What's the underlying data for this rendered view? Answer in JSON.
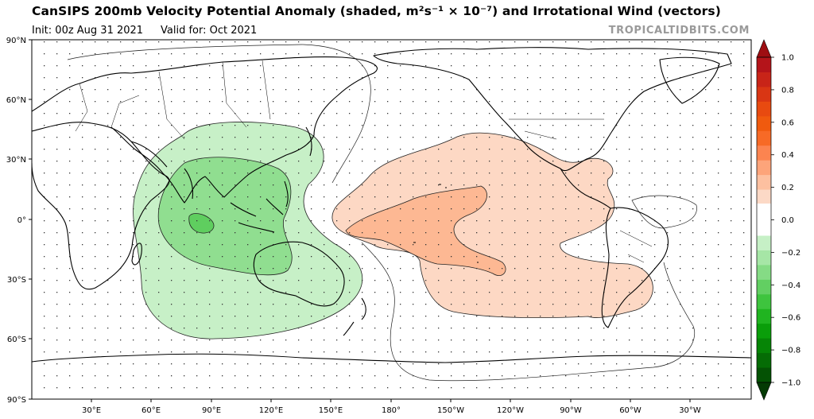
{
  "header": {
    "title": "CanSIPS 200mb Velocity Potential Anomaly (shaded, m²s⁻¹ × 10⁻⁷) and Irrotational Wind (vectors)",
    "init": "Init: 00z Aug 31 2021",
    "valid": "Valid for: Oct 2021",
    "brand": "TROPICALTIDBITS.COM"
  },
  "map": {
    "lat_labels": [
      "90°N",
      "60°N",
      "30°N",
      "0°",
      "30°S",
      "60°S",
      "90°S"
    ],
    "lon_labels": [
      "30°E",
      "60°E",
      "90°E",
      "120°E",
      "150°E",
      "180°",
      "150°W",
      "120°W",
      "90°W",
      "60°W",
      "30°W"
    ]
  },
  "colorbar": {
    "ticks": [
      "1.0",
      "0.8",
      "0.6",
      "0.4",
      "0.2",
      "0.0",
      "−0.2",
      "−0.4",
      "−0.6",
      "−0.8",
      "−1.0"
    ],
    "positive_colors": [
      "#fcd9c6",
      "#fdc0a0",
      "#fda47a",
      "#fc8450",
      "#f76a26",
      "#f05a0e",
      "#e84a10",
      "#d93614",
      "#c82418",
      "#b4141a"
    ],
    "negative_colors": [
      "#c6f0c6",
      "#a6e6a6",
      "#85db85",
      "#62cf62",
      "#3ec43e",
      "#20b420",
      "#0a9e0a",
      "#068506",
      "#056c05",
      "#045204"
    ],
    "over_color": "#9e0e12",
    "under_color": "#043a04"
  },
  "colors": {
    "green_light": "#c7f0c7",
    "green_mid": "#90de90",
    "green_dark": "#5fce5f",
    "orange_light": "#fdd8c4",
    "orange_mid": "#fdb893"
  }
}
